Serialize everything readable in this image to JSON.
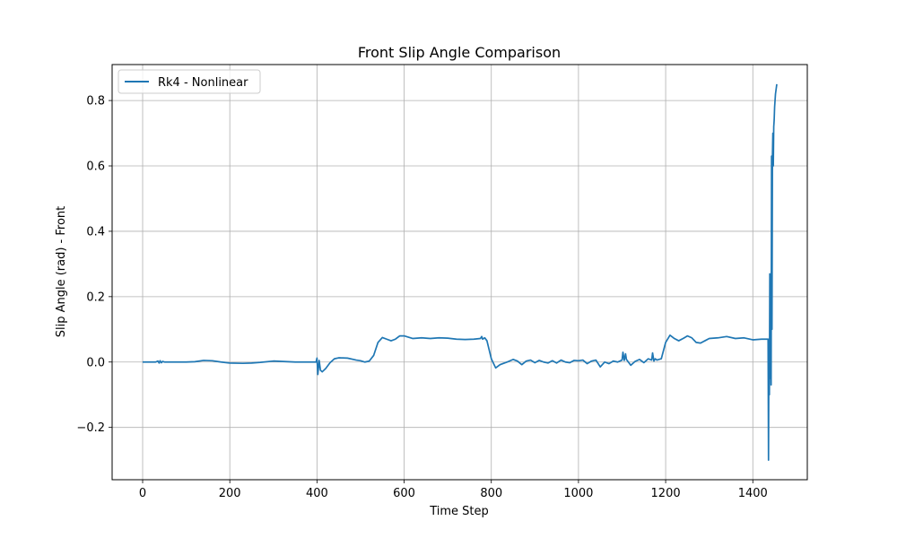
{
  "chart_data": {
    "type": "line",
    "title": "Front Slip Angle Comparison",
    "xlabel": "Time Step",
    "ylabel": "Slip Angle (rad) - Front",
    "xlim": [
      -70,
      1525
    ],
    "ylim": [
      -0.36,
      0.91
    ],
    "xticks": [
      0,
      200,
      400,
      600,
      800,
      1000,
      1200,
      1400
    ],
    "yticks": [
      -0.2,
      0.0,
      0.2,
      0.4,
      0.6,
      0.8
    ],
    "ytick_labels": [
      "−0.2",
      "0.0",
      "0.2",
      "0.4",
      "0.6",
      "0.8"
    ],
    "grid": true,
    "legend_position": "top-left",
    "series": [
      {
        "name": "Rk4 - Nonlinear",
        "color": "#1f77b4",
        "x": [
          0,
          30,
          35,
          38,
          40,
          43,
          46,
          50,
          100,
          120,
          140,
          160,
          180,
          200,
          230,
          250,
          270,
          300,
          350,
          398,
          400,
          402,
          405,
          408,
          412,
          420,
          430,
          440,
          450,
          470,
          490,
          500,
          510,
          520,
          530,
          540,
          550,
          560,
          570,
          580,
          590,
          600,
          620,
          640,
          660,
          680,
          700,
          720,
          740,
          760,
          775,
          778,
          780,
          785,
          790,
          800,
          810,
          820,
          840,
          850,
          860,
          870,
          880,
          890,
          900,
          910,
          920,
          930,
          940,
          950,
          960,
          970,
          980,
          990,
          1000,
          1010,
          1020,
          1030,
          1040,
          1050,
          1060,
          1070,
          1080,
          1090,
          1100,
          1102,
          1105,
          1108,
          1110,
          1120,
          1130,
          1140,
          1150,
          1160,
          1168,
          1170,
          1173,
          1176,
          1180,
          1190,
          1200,
          1210,
          1220,
          1230,
          1240,
          1250,
          1260,
          1270,
          1280,
          1290,
          1300,
          1320,
          1340,
          1360,
          1380,
          1400,
          1420,
          1435,
          1436,
          1437,
          1438,
          1439,
          1440,
          1441,
          1442,
          1443,
          1444,
          1445,
          1446,
          1447,
          1448,
          1449,
          1450,
          1452,
          1455
        ],
        "y": [
          0.0,
          0.0,
          0.003,
          -0.003,
          0.004,
          -0.002,
          0.002,
          0.0,
          0.0,
          0.001,
          0.005,
          0.004,
          0.0,
          -0.003,
          -0.004,
          -0.003,
          -0.001,
          0.003,
          0.0,
          0.0,
          0.012,
          -0.038,
          0.005,
          -0.025,
          -0.03,
          -0.02,
          -0.002,
          0.01,
          0.013,
          0.012,
          0.006,
          0.004,
          0.0,
          0.003,
          0.02,
          0.06,
          0.075,
          0.07,
          0.065,
          0.07,
          0.08,
          0.08,
          0.072,
          0.074,
          0.072,
          0.074,
          0.073,
          0.07,
          0.069,
          0.07,
          0.072,
          0.078,
          0.07,
          0.074,
          0.065,
          0.01,
          -0.018,
          -0.008,
          0.002,
          0.008,
          0.003,
          -0.008,
          0.003,
          0.006,
          -0.002,
          0.005,
          0.0,
          -0.003,
          0.004,
          -0.003,
          0.006,
          0.0,
          -0.002,
          0.005,
          0.004,
          0.006,
          -0.005,
          0.003,
          0.006,
          -0.015,
          0.0,
          -0.005,
          0.003,
          0.0,
          0.006,
          0.03,
          0.005,
          0.025,
          0.008,
          -0.01,
          0.002,
          0.008,
          -0.002,
          0.01,
          0.006,
          0.028,
          0.003,
          0.01,
          0.006,
          0.01,
          0.06,
          0.082,
          0.072,
          0.065,
          0.072,
          0.08,
          0.074,
          0.06,
          0.058,
          0.065,
          0.072,
          0.074,
          0.078,
          0.072,
          0.074,
          0.068,
          0.07,
          0.07,
          -0.3,
          0.07,
          -0.1,
          0.27,
          -0.05,
          0.2,
          -0.07,
          0.63,
          0.1,
          0.63,
          0.7,
          0.6,
          0.72,
          0.74,
          0.78,
          0.82,
          0.85
        ]
      }
    ]
  }
}
